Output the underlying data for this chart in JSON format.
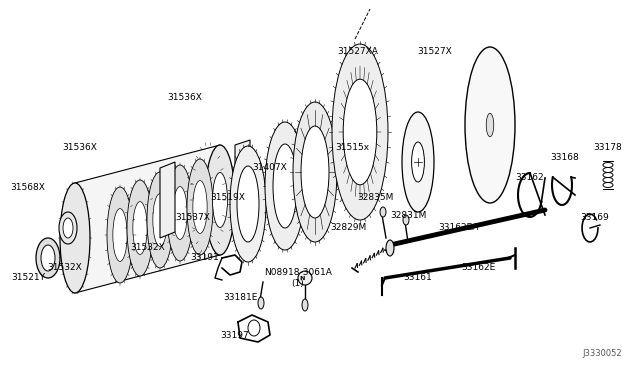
{
  "bg_color": "#ffffff",
  "diagram_code": "J3330052",
  "line_color": "#000000",
  "text_color": "#000000",
  "font_size": 6.5,
  "labels": [
    [
      358,
      52,
      "31527XA"
    ],
    [
      435,
      52,
      "31527X"
    ],
    [
      352,
      148,
      "31515x"
    ],
    [
      185,
      98,
      "31536X"
    ],
    [
      80,
      148,
      "31536X"
    ],
    [
      270,
      168,
      "31407X"
    ],
    [
      228,
      198,
      "31519X"
    ],
    [
      193,
      218,
      "31537X"
    ],
    [
      148,
      248,
      "31532X"
    ],
    [
      65,
      268,
      "31532X"
    ],
    [
      28,
      188,
      "31568X"
    ],
    [
      28,
      278,
      "31521Y"
    ],
    [
      205,
      258,
      "33191"
    ],
    [
      240,
      298,
      "33181E"
    ],
    [
      235,
      335,
      "33197"
    ],
    [
      298,
      278,
      "N08918-3061A\n(1)"
    ],
    [
      348,
      228,
      "32829M"
    ],
    [
      375,
      198,
      "32835M"
    ],
    [
      408,
      215,
      "32831M"
    ],
    [
      458,
      228,
      "33162EA"
    ],
    [
      418,
      278,
      "33161"
    ],
    [
      478,
      268,
      "33162E"
    ],
    [
      530,
      178,
      "33162"
    ],
    [
      565,
      158,
      "33168"
    ],
    [
      608,
      148,
      "33178"
    ],
    [
      595,
      218,
      "33169"
    ]
  ]
}
